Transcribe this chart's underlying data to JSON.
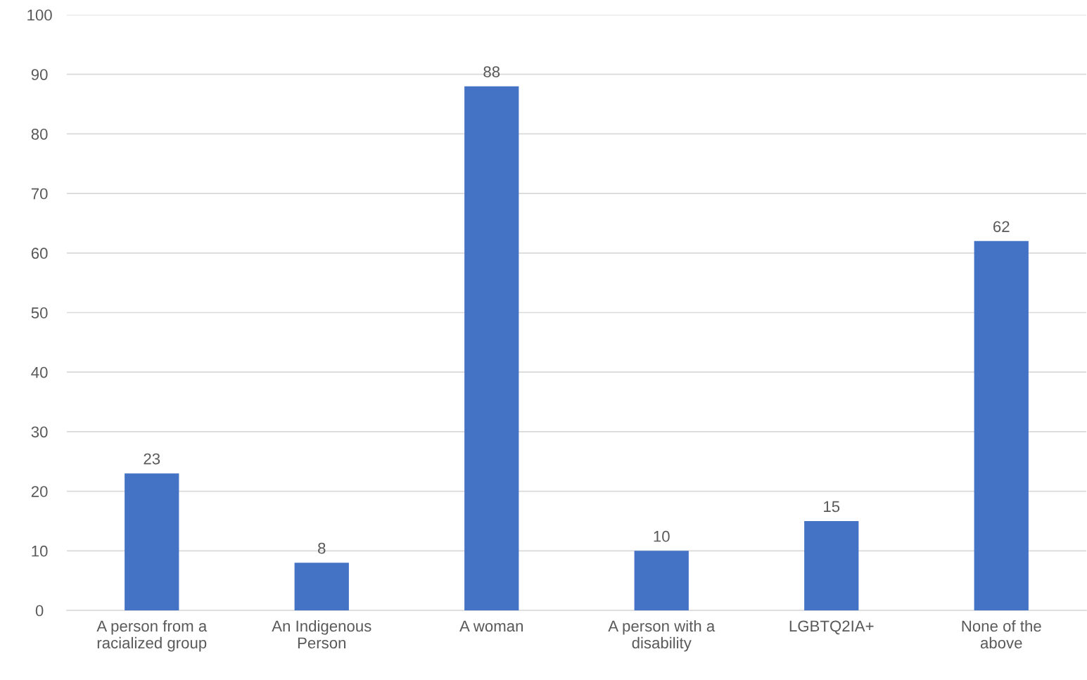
{
  "chart_data": {
    "type": "bar",
    "categories": [
      "A person from a\nracialized group",
      "An Indigenous\nPerson",
      "A woman",
      "A person with a\ndisability",
      "LGBTQ2IA+",
      "None of the\nabove"
    ],
    "values": [
      23,
      8,
      88,
      10,
      15,
      62
    ],
    "color": "#4472c4",
    "ylim": [
      0,
      100
    ],
    "yticks": [
      0,
      10,
      20,
      30,
      40,
      50,
      60,
      70,
      80,
      90,
      100
    ],
    "grid": "y",
    "data_labels": true,
    "legend": false
  }
}
